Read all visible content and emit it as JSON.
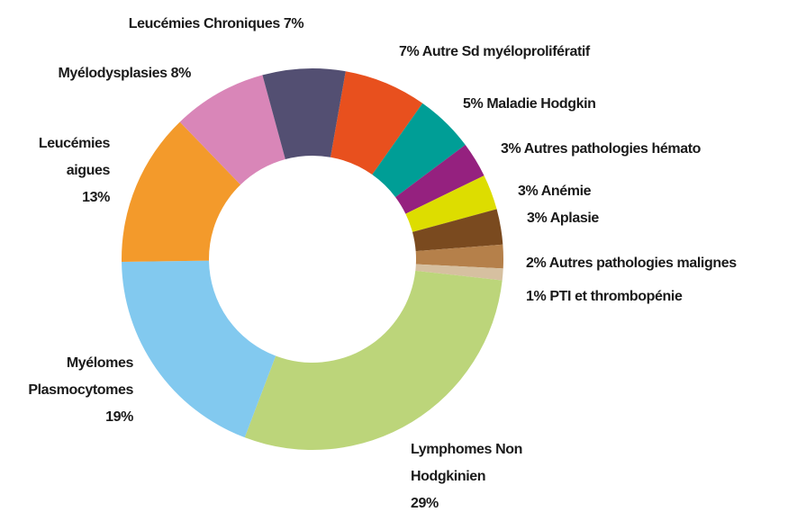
{
  "chart_data": {
    "type": "donut",
    "categories": [
      "Autre Sd myéloprolifératif",
      "Maladie Hodgkin",
      "Autres pathologies hémato",
      "Anémie",
      "Aplasie",
      "Autres pathologies malignes",
      "PTI et thrombopénie",
      "Lymphomes Non Hodgkinien",
      "Myélomes Plasmocytomes",
      "Leucémies aigues",
      "Myélodysplasies",
      "Leucémies Chroniques"
    ],
    "values": [
      7,
      5,
      3,
      3,
      3,
      2,
      1,
      29,
      19,
      13,
      8,
      7
    ],
    "value_labels": [
      "7%",
      "5%",
      "3%",
      "3%",
      "3%",
      "2%",
      "1%",
      "29%",
      "19%",
      "13%",
      "8%",
      "7%"
    ],
    "colors": [
      "#e8501e",
      "#009e96",
      "#95217f",
      "#dddd00",
      "#7a4a1f",
      "#b5804a",
      "#d6c0a0",
      "#bcd57a",
      "#82c9ef",
      "#f39a2b",
      "#d986b8",
      "#534f72"
    ]
  }
}
